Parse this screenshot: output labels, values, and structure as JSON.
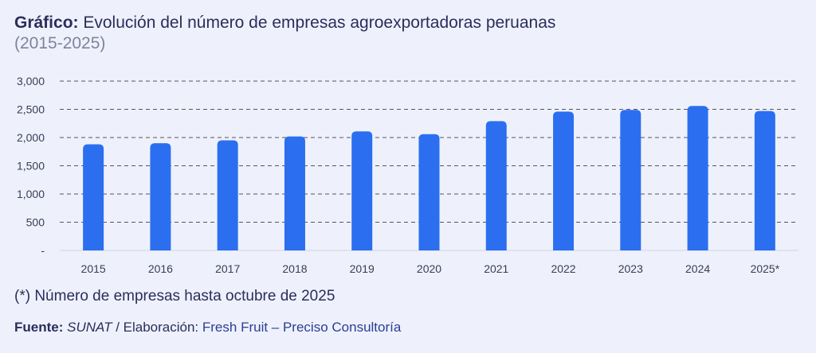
{
  "header": {
    "title_label": "Gráfico:",
    "title_text": "Evolución del número de empresas agroexportadoras peruanas",
    "subtitle": "(2015-2025)"
  },
  "chart_data": {
    "type": "bar",
    "categories": [
      "2015",
      "2016",
      "2017",
      "2018",
      "2019",
      "2020",
      "2021",
      "2022",
      "2023",
      "2024",
      "2025*"
    ],
    "values": [
      1880,
      1900,
      1950,
      2020,
      2110,
      2060,
      2290,
      2460,
      2490,
      2560,
      2470
    ],
    "ylim": [
      0,
      3000
    ],
    "yticks": [
      0,
      500,
      1000,
      1500,
      2000,
      2500,
      3000
    ],
    "ytick_labels": [
      "-",
      "500",
      "1,000",
      "1,500",
      "2,000",
      "2,500",
      "3,000"
    ],
    "grid": true,
    "bar_color": "#2b6ff0"
  },
  "footer": {
    "note": "(*) Número de empresas hasta octubre de 2025",
    "source_label": "Fuente:",
    "source_name": "SUNAT",
    "source_sep": " / Elaboración: ",
    "source_credit": "Fresh Fruit – Preciso Consultoría"
  },
  "colors": {
    "background": "#eef1fc",
    "text": "#2a2e5a",
    "bar": "#2b6ff0",
    "grid": "#555555"
  }
}
